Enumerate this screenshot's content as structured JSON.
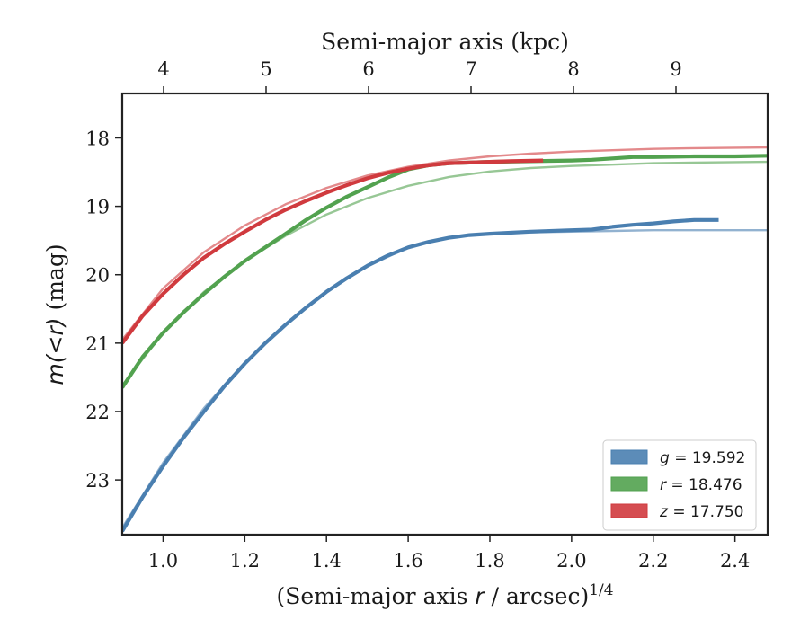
{
  "chart_data": {
    "type": "line",
    "x_axis": {
      "label_main": "(Semi-major axis ",
      "label_var": "r",
      "label_rest": " / arcsec)",
      "label_sup": "1/4",
      "range": [
        0.9,
        2.48
      ],
      "ticks": [
        "1.0",
        "1.2",
        "1.4",
        "1.6",
        "1.8",
        "2.0",
        "2.2",
        "2.4"
      ],
      "tick_values": [
        1.0,
        1.2,
        1.4,
        1.6,
        1.8,
        2.0,
        2.2,
        2.4
      ]
    },
    "x_axis_top": {
      "label": "Semi-major axis (kpc)",
      "ticks": [
        "4",
        "5",
        "6",
        "7",
        "8",
        "9"
      ],
      "tick_values": [
        4,
        5,
        6,
        7,
        8,
        9
      ],
      "kpc_per_arcsec_equiv": 1.0
    },
    "y_axis": {
      "label_var": "m(<r)",
      "label_rest": " (mag)",
      "range": [
        23.8,
        17.35
      ],
      "inverted": true,
      "ticks": [
        "18",
        "19",
        "20",
        "21",
        "22",
        "23"
      ],
      "tick_values": [
        18,
        19,
        20,
        21,
        22,
        23
      ]
    },
    "legend": {
      "position": "lower-right",
      "entries": [
        {
          "var": "g",
          "text": " = 19.592",
          "color": "#4a7fb0"
        },
        {
          "var": "r",
          "text": " = 18.476",
          "color": "#52a24f"
        },
        {
          "var": "z",
          "text": " = 17.750",
          "color": "#d03a3e"
        }
      ]
    },
    "series": [
      {
        "name": "g",
        "color": "#4a7fb0",
        "data": [
          [
            0.9,
            23.75
          ],
          [
            0.95,
            23.25
          ],
          [
            1.0,
            22.8
          ],
          [
            1.05,
            22.38
          ],
          [
            1.1,
            22.0
          ],
          [
            1.15,
            21.63
          ],
          [
            1.2,
            21.3
          ],
          [
            1.25,
            21.0
          ],
          [
            1.3,
            20.73
          ],
          [
            1.35,
            20.48
          ],
          [
            1.4,
            20.25
          ],
          [
            1.45,
            20.05
          ],
          [
            1.5,
            19.87
          ],
          [
            1.55,
            19.72
          ],
          [
            1.6,
            19.6
          ],
          [
            1.65,
            19.52
          ],
          [
            1.7,
            19.46
          ],
          [
            1.75,
            19.42
          ],
          [
            1.8,
            19.4
          ],
          [
            1.9,
            19.37
          ],
          [
            2.0,
            19.35
          ],
          [
            2.05,
            19.34
          ],
          [
            2.1,
            19.3
          ],
          [
            2.15,
            19.27
          ],
          [
            2.2,
            19.25
          ],
          [
            2.25,
            19.22
          ],
          [
            2.3,
            19.2
          ],
          [
            2.36,
            19.2
          ]
        ],
        "fit": [
          [
            0.9,
            23.7
          ],
          [
            1.0,
            22.75
          ],
          [
            1.1,
            21.95
          ],
          [
            1.2,
            21.28
          ],
          [
            1.3,
            20.72
          ],
          [
            1.4,
            20.25
          ],
          [
            1.5,
            19.88
          ],
          [
            1.6,
            19.6
          ],
          [
            1.7,
            19.45
          ],
          [
            1.8,
            19.4
          ],
          [
            1.9,
            19.38
          ],
          [
            2.0,
            19.37
          ],
          [
            2.1,
            19.36
          ],
          [
            2.2,
            19.35
          ],
          [
            2.3,
            19.35
          ],
          [
            2.48,
            19.35
          ]
        ]
      },
      {
        "name": "r",
        "color": "#52a24f",
        "data": [
          [
            0.9,
            21.65
          ],
          [
            0.95,
            21.2
          ],
          [
            1.0,
            20.85
          ],
          [
            1.05,
            20.55
          ],
          [
            1.1,
            20.28
          ],
          [
            1.15,
            20.03
          ],
          [
            1.2,
            19.8
          ],
          [
            1.25,
            19.6
          ],
          [
            1.3,
            19.4
          ],
          [
            1.35,
            19.2
          ],
          [
            1.4,
            19.02
          ],
          [
            1.45,
            18.86
          ],
          [
            1.5,
            18.72
          ],
          [
            1.55,
            18.58
          ],
          [
            1.6,
            18.46
          ],
          [
            1.65,
            18.4
          ],
          [
            1.7,
            18.37
          ],
          [
            1.75,
            18.36
          ],
          [
            1.8,
            18.35
          ],
          [
            1.9,
            18.34
          ],
          [
            2.0,
            18.33
          ],
          [
            2.05,
            18.32
          ],
          [
            2.1,
            18.3
          ],
          [
            2.15,
            18.28
          ],
          [
            2.2,
            18.28
          ],
          [
            2.3,
            18.27
          ],
          [
            2.4,
            18.27
          ],
          [
            2.48,
            18.26
          ]
        ],
        "fit": [
          [
            0.9,
            21.62
          ],
          [
            1.0,
            20.85
          ],
          [
            1.1,
            20.25
          ],
          [
            1.2,
            19.8
          ],
          [
            1.3,
            19.43
          ],
          [
            1.4,
            19.12
          ],
          [
            1.5,
            18.88
          ],
          [
            1.6,
            18.7
          ],
          [
            1.7,
            18.57
          ],
          [
            1.8,
            18.49
          ],
          [
            1.9,
            18.44
          ],
          [
            2.0,
            18.41
          ],
          [
            2.1,
            18.39
          ],
          [
            2.2,
            18.37
          ],
          [
            2.3,
            18.36
          ],
          [
            2.48,
            18.35
          ]
        ]
      },
      {
        "name": "z",
        "color": "#d03a3e",
        "data": [
          [
            0.9,
            21.0
          ],
          [
            0.95,
            20.6
          ],
          [
            1.0,
            20.28
          ],
          [
            1.05,
            20.0
          ],
          [
            1.1,
            19.75
          ],
          [
            1.15,
            19.55
          ],
          [
            1.2,
            19.37
          ],
          [
            1.25,
            19.2
          ],
          [
            1.3,
            19.05
          ],
          [
            1.35,
            18.92
          ],
          [
            1.4,
            18.8
          ],
          [
            1.45,
            18.69
          ],
          [
            1.5,
            18.59
          ],
          [
            1.55,
            18.51
          ],
          [
            1.6,
            18.45
          ],
          [
            1.65,
            18.4
          ],
          [
            1.7,
            18.37
          ],
          [
            1.75,
            18.36
          ],
          [
            1.8,
            18.35
          ],
          [
            1.85,
            18.34
          ],
          [
            1.93,
            18.33
          ]
        ],
        "fit": [
          [
            0.9,
            20.95
          ],
          [
            1.0,
            20.2
          ],
          [
            1.1,
            19.67
          ],
          [
            1.2,
            19.28
          ],
          [
            1.3,
            18.97
          ],
          [
            1.4,
            18.73
          ],
          [
            1.5,
            18.55
          ],
          [
            1.6,
            18.42
          ],
          [
            1.7,
            18.33
          ],
          [
            1.8,
            18.27
          ],
          [
            1.9,
            18.23
          ],
          [
            2.0,
            18.2
          ],
          [
            2.1,
            18.18
          ],
          [
            2.2,
            18.16
          ],
          [
            2.3,
            18.15
          ],
          [
            2.48,
            18.14
          ]
        ]
      }
    ]
  }
}
